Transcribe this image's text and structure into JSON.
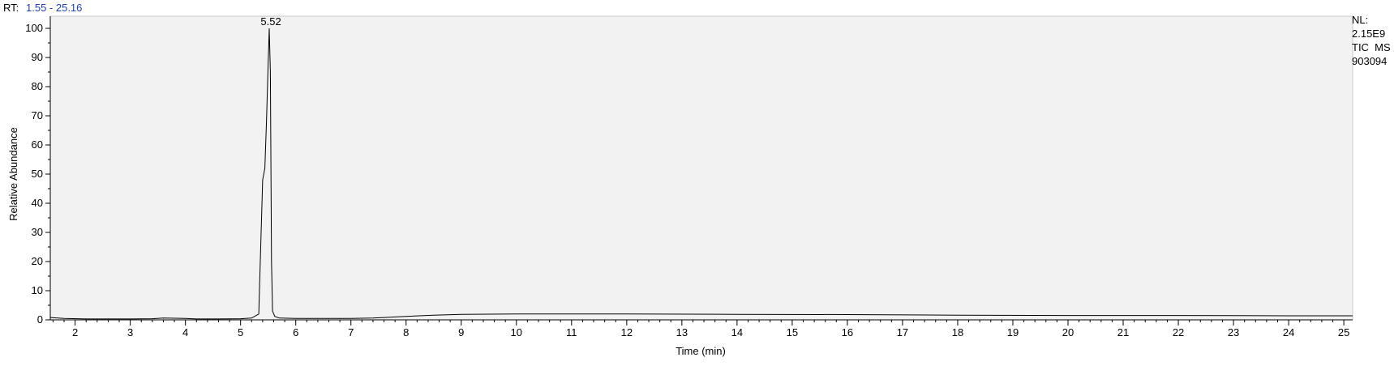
{
  "header": {
    "rt_label": "RT:",
    "rt_range": "1.55 - 25.16"
  },
  "info": {
    "nl_label": "NL:",
    "nl_value": "2.15E9",
    "scan_filter": "TIC  MS",
    "file_id": "903094"
  },
  "colors": {
    "plot_background": "#f2f2f2",
    "trace": "#000000",
    "rt_range_text": "#1f3fbf"
  },
  "chart_data": {
    "type": "line",
    "xlabel": "Time (min)",
    "ylabel": "Relative Abundance",
    "xlim": [
      1.55,
      25.16
    ],
    "ylim": [
      0,
      100
    ],
    "x_ticks": [
      2,
      3,
      4,
      5,
      6,
      7,
      8,
      9,
      10,
      11,
      12,
      13,
      14,
      15,
      16,
      17,
      18,
      19,
      20,
      21,
      22,
      23,
      24,
      25
    ],
    "y_ticks": [
      0,
      10,
      20,
      30,
      40,
      50,
      60,
      70,
      80,
      90,
      100
    ],
    "grid": false,
    "peak_labels": [
      {
        "x": 5.52,
        "y": 100,
        "text": "5.52"
      }
    ],
    "series": [
      {
        "x": [
          1.55,
          1.8,
          2.2,
          2.6,
          3.0,
          3.4,
          3.6,
          4.0,
          4.2,
          4.6,
          5.0,
          5.2,
          5.33,
          5.37,
          5.4,
          5.44,
          5.47,
          5.5,
          5.52,
          5.54,
          5.56,
          5.58,
          5.62,
          5.7,
          6.0,
          6.5,
          7.0,
          7.4,
          7.6,
          8.0,
          8.5,
          9.0,
          10.0,
          12.0,
          14.0,
          16.0,
          18.0,
          20.0,
          22.0,
          24.0,
          25.16
        ],
        "y": [
          0.8,
          0.5,
          0.3,
          0.3,
          0.3,
          0.4,
          0.6,
          0.5,
          0.3,
          0.3,
          0.4,
          0.6,
          2,
          28,
          48,
          52,
          68,
          88,
          100,
          85,
          20,
          3,
          1.2,
          0.6,
          0.5,
          0.5,
          0.5,
          0.6,
          0.8,
          1.2,
          1.6,
          1.9,
          2.0,
          2.0,
          1.9,
          1.8,
          1.6,
          1.5,
          1.5,
          1.4,
          1.4
        ]
      }
    ]
  }
}
